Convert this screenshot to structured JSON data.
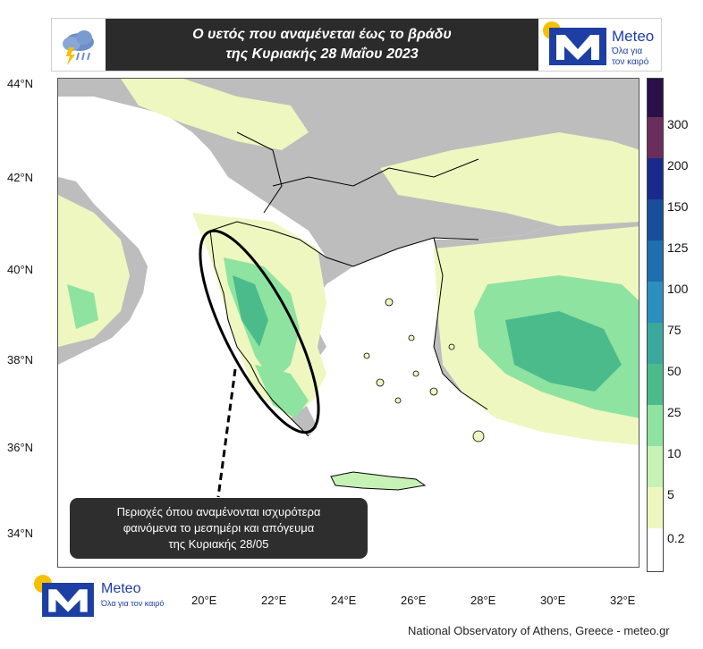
{
  "header": {
    "title_line1": "Ο υετός που αναμένεται έως το βράδυ",
    "title_line2": "της Κυριακής 28 Μαΐου 2023",
    "icon": "rain-cloud-lightning-icon"
  },
  "logo": {
    "brand": "Meteo",
    "tagline_line1": "Όλα για",
    "tagline_line2": "τον καιρό",
    "colors": {
      "m_block": "#1d3fa3",
      "sun": "#f5c000"
    }
  },
  "map": {
    "lat_labels": [
      "44°N",
      "42°N",
      "40°N",
      "38°N",
      "36°N",
      "34°N"
    ],
    "lon_labels": [
      "20°E",
      "22°E",
      "24°E",
      "26°E",
      "28°E",
      "30°E",
      "32°E"
    ],
    "colors": {
      "sea": "#ffffff",
      "land_dry": "#bdbdbd",
      "border": "#000000"
    }
  },
  "colorbar": {
    "labels": [
      "300",
      "200",
      "150",
      "125",
      "100",
      "75",
      "50",
      "25",
      "10",
      "5",
      "0.2"
    ],
    "colors": [
      "#2a0f4a",
      "#6b2d5c",
      "#1a2a8c",
      "#174f9a",
      "#1d6fb0",
      "#2b8fbf",
      "#3aa89c",
      "#4cbb8c",
      "#8ee3a0",
      "#c7f2b5",
      "#eef7c0",
      "#ffffff"
    ]
  },
  "callout": {
    "line1": "Περιοχές όπου αναμένονται ισχυρότερα",
    "line2": "φαινόμενα το μεσημέρι και απόγευμα",
    "line3": "της Κυριακής 28/05"
  },
  "footer": {
    "credit": "National Observatory of Athens, Greece - meteo.gr"
  }
}
